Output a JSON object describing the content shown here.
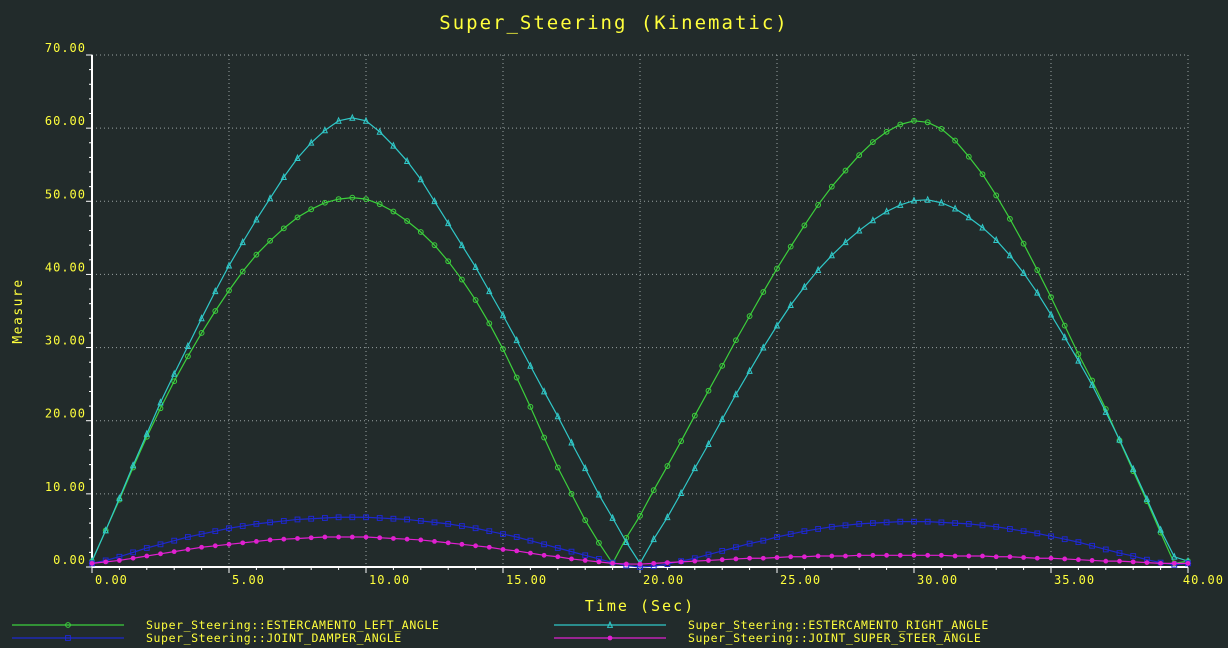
{
  "colors": {
    "background": "#222b2b",
    "text": "#ffff3c",
    "axis": "#ffffff",
    "grid": "#9aa3a3"
  },
  "chart_data": {
    "type": "line",
    "title": "Super_Steering (Kinematic)",
    "xlabel": "Time (Sec)",
    "ylabel": "Measure",
    "xlim": [
      0,
      40
    ],
    "ylim": [
      0,
      70
    ],
    "x_ticks": [
      0,
      5,
      10,
      15,
      20,
      25,
      30,
      35,
      40
    ],
    "x_tick_labels": [
      "0.00",
      "5.00",
      "10.00",
      "15.00",
      "20.00",
      "25.00",
      "30.00",
      "35.00",
      "40.00"
    ],
    "y_ticks": [
      0,
      10,
      20,
      30,
      40,
      50,
      60,
      70
    ],
    "y_tick_labels": [
      "0.00",
      "10.00",
      "20.00",
      "30.00",
      "40.00",
      "50.00",
      "60.00",
      "70.00"
    ],
    "grid": true,
    "legend_position": "bottom",
    "x": [
      0,
      0.5,
      1,
      1.5,
      2,
      2.5,
      3,
      3.5,
      4,
      4.5,
      5,
      5.5,
      6,
      6.5,
      7,
      7.5,
      8,
      8.5,
      9,
      9.5,
      10,
      10.5,
      11,
      11.5,
      12,
      12.5,
      13,
      13.5,
      14,
      14.5,
      15,
      15.5,
      16,
      16.5,
      17,
      17.5,
      18,
      18.5,
      19,
      19.5,
      20,
      20.5,
      21,
      21.5,
      22,
      22.5,
      23,
      23.5,
      24,
      24.5,
      25,
      25.5,
      26,
      26.5,
      27,
      27.5,
      28,
      28.5,
      29,
      29.5,
      30,
      30.5,
      31,
      31.5,
      32,
      32.5,
      33,
      33.5,
      34,
      34.5,
      35,
      35.5,
      36,
      36.5,
      37,
      37.5,
      38,
      38.5,
      39,
      39.5,
      40
    ],
    "series": [
      {
        "name": "Super_Steering::ESTERCAMENTO_LEFT_ANGLE",
        "color": "#3cd03c",
        "marker": "circle",
        "values": [
          0.8,
          5,
          9.2,
          13.6,
          17.8,
          21.7,
          25.4,
          28.8,
          32.0,
          35.0,
          37.8,
          40.4,
          42.7,
          44.6,
          46.3,
          47.8,
          48.9,
          49.8,
          50.3,
          50.5,
          50.3,
          49.6,
          48.6,
          47.3,
          45.8,
          44.0,
          41.8,
          39.3,
          36.5,
          33.3,
          29.8,
          25.9,
          21.9,
          17.7,
          13.6,
          10.0,
          6.4,
          3.3,
          0.5,
          4.0,
          7.0,
          10.5,
          13.8,
          17.2,
          20.7,
          24.1,
          27.5,
          31.0,
          34.3,
          37.6,
          40.8,
          43.8,
          46.7,
          49.5,
          52.0,
          54.2,
          56.3,
          58.1,
          59.5,
          60.5,
          61.0,
          60.8,
          59.9,
          58.3,
          56.1,
          53.7,
          50.8,
          47.6,
          44.2,
          40.6,
          36.9,
          33.0,
          29.1,
          25.5,
          21.6,
          17.3,
          13.1,
          9.0,
          4.7,
          0.5,
          0.8
        ]
      },
      {
        "name": "Super_Steering::ESTERCAMENTO_RIGHT_ANGLE",
        "color": "#30c8c8",
        "marker": "triangle",
        "values": [
          0.8,
          5,
          9.4,
          13.9,
          18.2,
          22.5,
          26.4,
          30.2,
          34.0,
          37.7,
          41.2,
          44.4,
          47.5,
          50.4,
          53.3,
          55.9,
          58.0,
          59.7,
          61.0,
          61.4,
          61.0,
          59.5,
          57.6,
          55.5,
          53.0,
          50.0,
          47.0,
          44.0,
          41.0,
          37.7,
          34.4,
          31.0,
          27.5,
          24.0,
          20.6,
          17.0,
          13.5,
          9.9,
          6.7,
          3.4,
          0.5,
          3.8,
          6.8,
          10.1,
          13.5,
          16.8,
          20.2,
          23.6,
          26.8,
          30.0,
          33.0,
          35.8,
          38.3,
          40.6,
          42.6,
          44.4,
          46.0,
          47.4,
          48.6,
          49.5,
          50.1,
          50.2,
          49.8,
          49.0,
          47.8,
          46.4,
          44.7,
          42.6,
          40.2,
          37.5,
          34.5,
          31.4,
          28.2,
          24.9,
          21.2,
          17.4,
          13.4,
          9.3,
          5.1,
          1.4,
          0.8
        ]
      },
      {
        "name": "Super_Steering::JOINT_DAMPER_ANGLE",
        "color": "#1e28d0",
        "marker": "square",
        "values": [
          0.5,
          0.9,
          1.4,
          2.0,
          2.6,
          3.1,
          3.6,
          4.1,
          4.5,
          4.9,
          5.3,
          5.6,
          5.9,
          6.1,
          6.3,
          6.5,
          6.6,
          6.7,
          6.8,
          6.8,
          6.8,
          6.7,
          6.6,
          6.5,
          6.3,
          6.1,
          5.9,
          5.6,
          5.3,
          4.9,
          4.5,
          4.1,
          3.6,
          3.1,
          2.6,
          2.1,
          1.6,
          1.1,
          0.6,
          0.2,
          0.0,
          0.1,
          0.4,
          0.8,
          1.2,
          1.7,
          2.2,
          2.7,
          3.2,
          3.6,
          4.1,
          4.5,
          4.9,
          5.2,
          5.5,
          5.7,
          5.9,
          6.0,
          6.1,
          6.2,
          6.2,
          6.2,
          6.1,
          6.0,
          5.9,
          5.7,
          5.5,
          5.2,
          4.9,
          4.6,
          4.2,
          3.8,
          3.4,
          2.9,
          2.4,
          1.9,
          1.5,
          1.0,
          0.6,
          0.3,
          0.5
        ]
      },
      {
        "name": "Super_Steering::JOINT_SUPER_STEER_ANGLE",
        "color": "#e020d0",
        "marker": "dot",
        "values": [
          0.5,
          0.7,
          0.9,
          1.2,
          1.5,
          1.8,
          2.1,
          2.4,
          2.7,
          2.9,
          3.1,
          3.3,
          3.5,
          3.7,
          3.8,
          3.9,
          4.0,
          4.1,
          4.1,
          4.1,
          4.1,
          4.0,
          3.9,
          3.8,
          3.7,
          3.5,
          3.3,
          3.1,
          2.9,
          2.7,
          2.4,
          2.2,
          1.9,
          1.6,
          1.4,
          1.1,
          0.9,
          0.7,
          0.5,
          0.4,
          0.4,
          0.5,
          0.6,
          0.7,
          0.8,
          0.9,
          1.0,
          1.1,
          1.2,
          1.2,
          1.3,
          1.4,
          1.4,
          1.5,
          1.5,
          1.5,
          1.6,
          1.6,
          1.6,
          1.6,
          1.6,
          1.6,
          1.6,
          1.5,
          1.5,
          1.5,
          1.4,
          1.4,
          1.3,
          1.2,
          1.2,
          1.1,
          1.0,
          0.9,
          0.8,
          0.8,
          0.7,
          0.6,
          0.5,
          0.5,
          0.5
        ]
      }
    ]
  }
}
